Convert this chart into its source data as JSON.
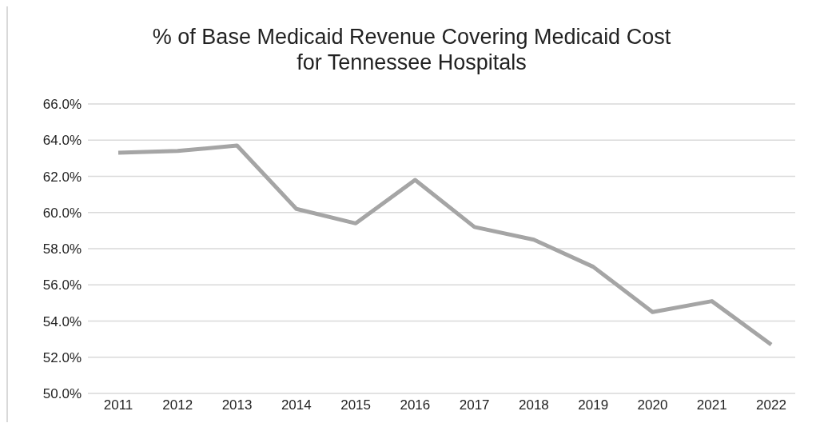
{
  "chart_data": {
    "type": "line",
    "title": "% of Base Medicaid Revenue Covering Medicaid Cost\nfor Tennessee Hospitals",
    "categories": [
      "2011",
      "2012",
      "2013",
      "2014",
      "2015",
      "2016",
      "2017",
      "2018",
      "2019",
      "2020",
      "2021",
      "2022"
    ],
    "series": [
      {
        "color": "#a5a5a5",
        "values": [
          63.3,
          63.4,
          63.7,
          60.2,
          59.4,
          61.8,
          59.2,
          58.5,
          57.0,
          54.5,
          55.1,
          52.7
        ]
      }
    ],
    "ylim": [
      50,
      66
    ],
    "yticks": [
      {
        "value": 50,
        "label": "50.0%"
      },
      {
        "value": 52,
        "label": "52.0%"
      },
      {
        "value": 54,
        "label": "54.0%"
      },
      {
        "value": 56,
        "label": "56.0%"
      },
      {
        "value": 58,
        "label": "58.0%"
      },
      {
        "value": 60,
        "label": "60.0%"
      },
      {
        "value": 62,
        "label": "62.0%"
      },
      {
        "value": 64,
        "label": "64.0%"
      },
      {
        "value": 66,
        "label": "66.0%"
      }
    ],
    "grid": "y",
    "marker": "none",
    "line_style": "solid",
    "legend": false
  }
}
